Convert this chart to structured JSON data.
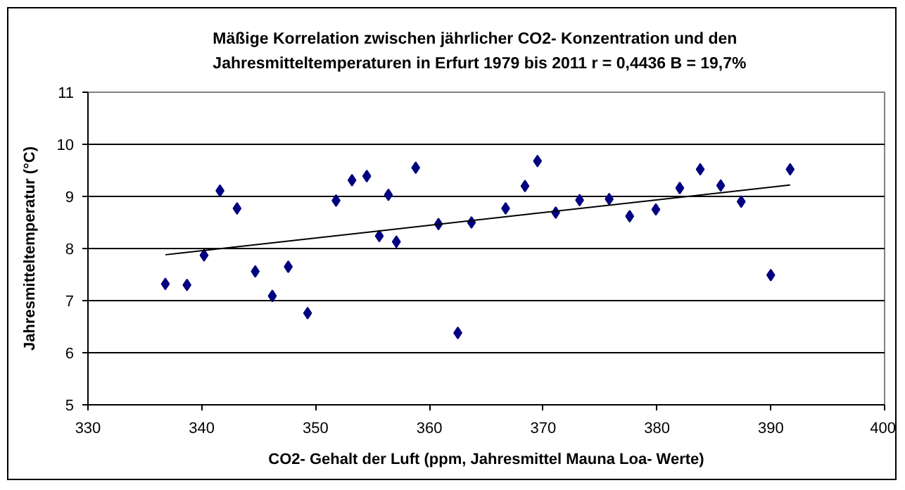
{
  "chart_data": {
    "type": "scatter",
    "title": "Mäßige Korrelation zwischen jährlicher CO2- Konzentration und den\nJahresmitteltemperaturen in Erfurt 1979 bis 2011   r = 0,4436  B = 19,7%",
    "xlabel": "CO2- Gehalt der Luft (ppm, Jahresmittel Mauna Loa- Werte)",
    "ylabel": "Jahresmitteltemperatur (°C)",
    "xlim": [
      330,
      400
    ],
    "xticks": [
      330,
      340,
      350,
      360,
      370,
      380,
      390,
      400
    ],
    "ylim": [
      5,
      11
    ],
    "yticks": [
      5,
      6,
      7,
      8,
      9,
      10,
      11
    ],
    "grid": "y",
    "marker": "diamond",
    "series": [
      {
        "color": "#000080",
        "x": [
          336.8,
          338.7,
          340.2,
          341.6,
          343.1,
          344.7,
          346.2,
          347.6,
          349.3,
          351.8,
          353.2,
          354.5,
          355.6,
          356.4,
          357.1,
          358.8,
          360.8,
          362.5,
          363.7,
          366.7,
          368.4,
          369.5,
          371.1,
          373.2,
          375.8,
          377.6,
          379.9,
          382.0,
          383.8,
          385.6,
          387.4,
          390.0,
          391.7
        ],
        "values": [
          7.32,
          7.3,
          7.87,
          9.11,
          8.77,
          7.56,
          7.09,
          7.65,
          6.76,
          8.92,
          9.31,
          9.39,
          8.24,
          9.03,
          8.13,
          9.55,
          8.47,
          6.38,
          8.5,
          8.77,
          9.2,
          9.68,
          8.69,
          8.93,
          8.95,
          8.62,
          8.75,
          9.16,
          9.52,
          9.21,
          8.9,
          7.49,
          9.52
        ]
      },
      {
        "type": "line",
        "color": "#000000",
        "marker": "none",
        "x": [
          336.8,
          391.7
        ],
        "values": [
          7.88,
          9.22
        ]
      }
    ]
  }
}
